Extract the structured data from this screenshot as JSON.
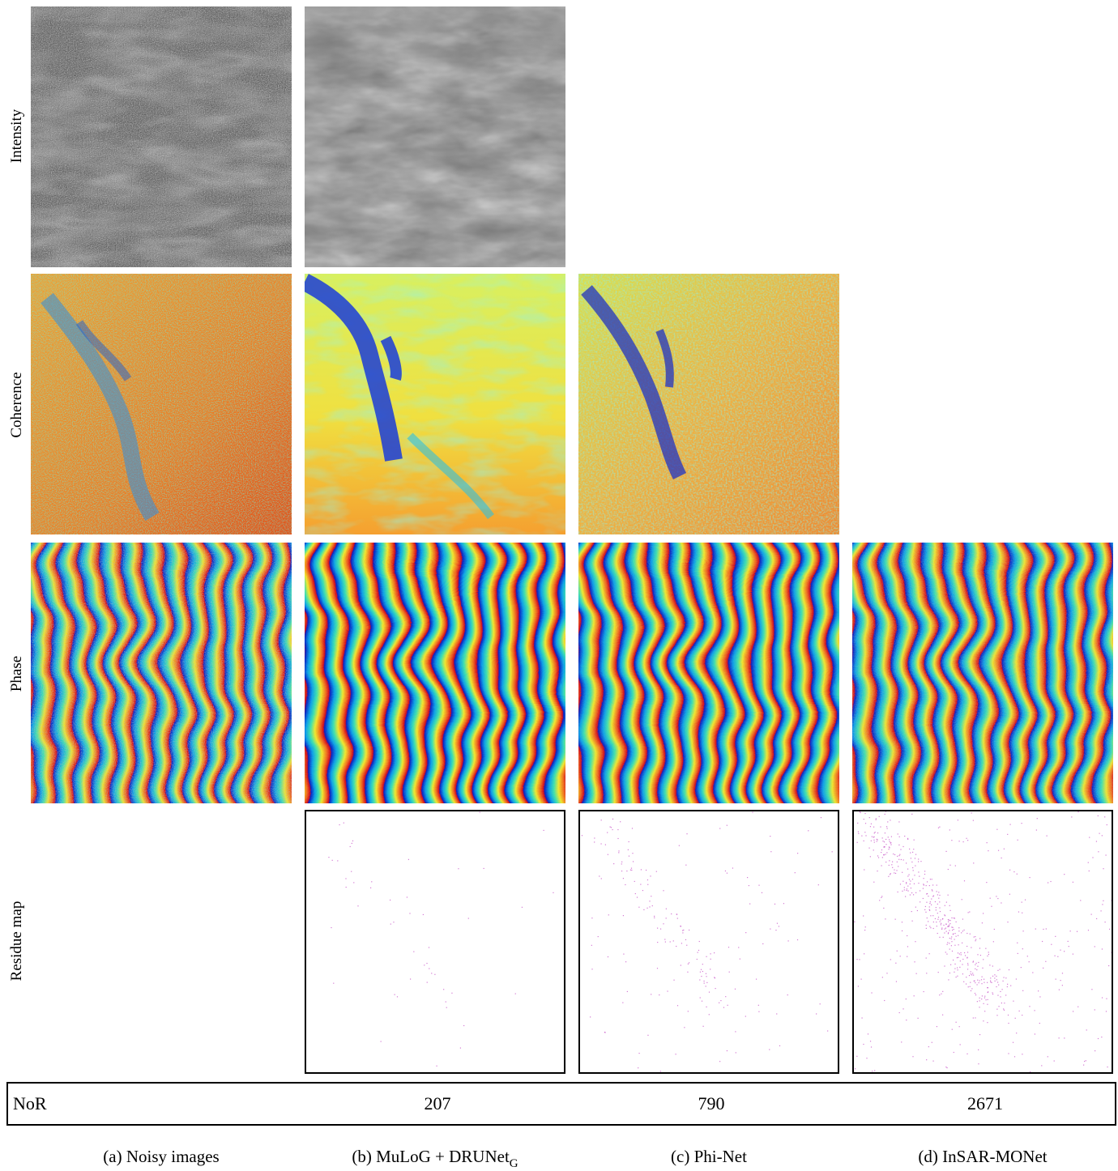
{
  "row_labels": {
    "intensity": "Intensity",
    "coherence": "Coherence",
    "phase": "Phase",
    "residue": "Residue map"
  },
  "nor": {
    "label": "NoR",
    "values": [
      "207",
      "790",
      "2671"
    ]
  },
  "captions": {
    "a": "(a) Noisy images",
    "b_main": "(b) MuLoG + DRUNet",
    "b_sub": "G",
    "c": "(c) Phi-Net",
    "d": "(d) InSAR-MONet"
  },
  "colors": {
    "residue_dots": "#c040c0",
    "frame": "#000000"
  }
}
